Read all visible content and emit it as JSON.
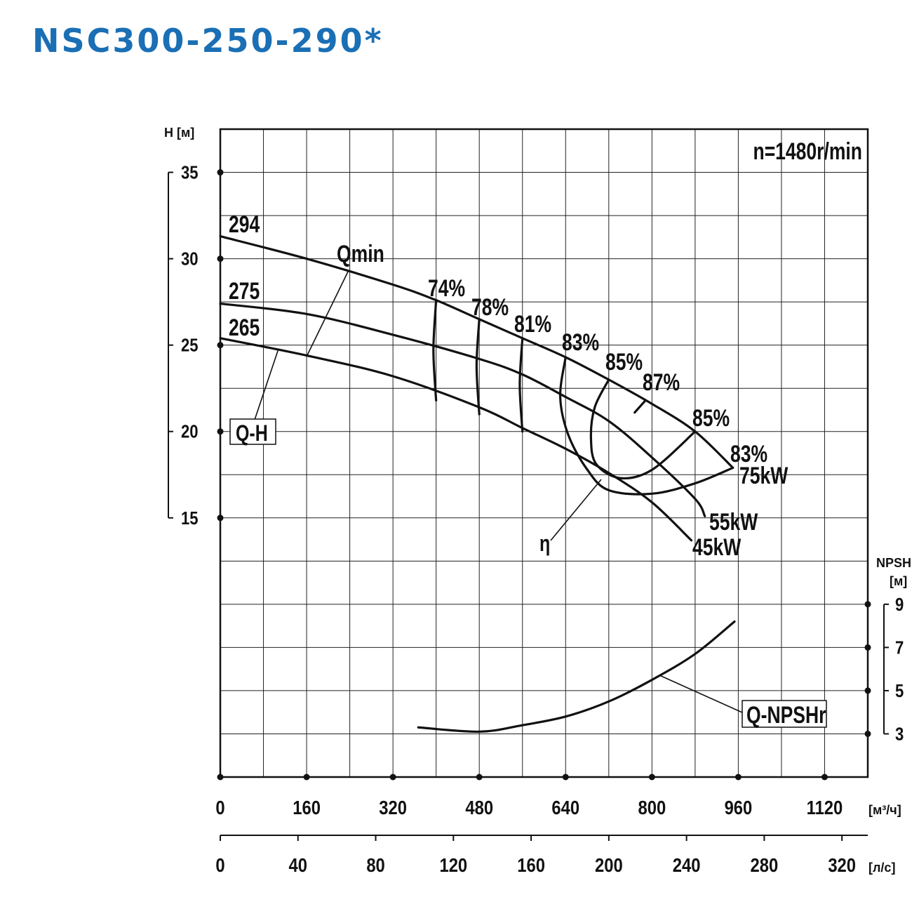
{
  "chart_data": {
    "type": "line",
    "title": "NSC300-250-290*",
    "subtitle": "n=1480r/min",
    "x_label": "[м³/ч]",
    "x2_label": "[л/с]",
    "y_label": "H [м]",
    "y2_label": [
      "NPSH",
      "[м]"
    ],
    "xlim": [
      0,
      1200
    ],
    "xticks": [
      0,
      160,
      320,
      480,
      640,
      800,
      960,
      1120
    ],
    "xgrid": [
      80,
      160,
      240,
      320,
      400,
      480,
      560,
      640,
      720,
      800,
      880,
      960,
      1040,
      1120
    ],
    "x2lim": [
      0,
      333.3
    ],
    "x2ticks": [
      0,
      40,
      80,
      120,
      160,
      200,
      240,
      280,
      320
    ],
    "ylim": [
      0,
      37.5
    ],
    "yticks": [
      15,
      20,
      25,
      30,
      35
    ],
    "ygrid": [
      2.5,
      5,
      7.5,
      10,
      12.5,
      15,
      17.5,
      20,
      22.5,
      25,
      27.5,
      30,
      32.5,
      35
    ],
    "y2lim": [
      1,
      31
    ],
    "y2ticks": [
      3,
      5,
      7,
      9
    ],
    "grid": true,
    "annotations": [
      "Qmin",
      "Q-H",
      "η",
      "Q-NPSHr",
      "75kW",
      "55kW",
      "45kW"
    ],
    "series": [
      {
        "name": "294",
        "color": "#111111",
        "x": [
          0,
          160,
          320,
          400,
          480,
          560,
          640,
          720,
          800,
          880,
          950
        ],
        "values": [
          31.3,
          30,
          28.5,
          27.6,
          26.5,
          25.4,
          24.3,
          23,
          21.6,
          20,
          17.9
        ]
      },
      {
        "name": "275",
        "color": "#111111",
        "x": [
          0,
          160,
          320,
          480,
          560,
          640,
          720,
          800,
          880,
          898
        ],
        "values": [
          27.4,
          26.8,
          25.6,
          24.2,
          23.3,
          22,
          20.6,
          18.5,
          16.1,
          15.1
        ]
      },
      {
        "name": "265",
        "color": "#111111",
        "x": [
          0,
          160,
          320,
          480,
          560,
          640,
          720,
          800,
          873
        ],
        "values": [
          25.4,
          24.4,
          23.2,
          21.4,
          20.2,
          19,
          17.6,
          15.9,
          13.7
        ]
      },
      {
        "name": "Q-NPSHr",
        "color": "#111111",
        "axis": "y2",
        "x": [
          367,
          480,
          560,
          640,
          720,
          800,
          880,
          953
        ],
        "values": [
          3.3,
          3.1,
          3.4,
          3.8,
          4.5,
          5.5,
          6.7,
          8.2
        ]
      },
      {
        "name": "74%",
        "color": "#111111",
        "x": [
          400,
          395,
          400
        ],
        "values": [
          27.6,
          24.7,
          21.8
        ]
      },
      {
        "name": "78%",
        "color": "#111111",
        "x": [
          480,
          475,
          480
        ],
        "values": [
          26.5,
          23.8,
          21
        ]
      },
      {
        "name": "81%",
        "color": "#111111",
        "x": [
          560,
          555,
          560
        ],
        "values": [
          25.4,
          22.7,
          20
        ]
      },
      {
        "name": "83%",
        "color": "#111111",
        "x": [
          640,
          630,
          645,
          680,
          720,
          800,
          880,
          950
        ],
        "values": [
          24.3,
          22,
          19.8,
          17.8,
          16.6,
          16.4,
          17,
          17.9
        ]
      },
      {
        "name": "85%",
        "color": "#111111",
        "x": [
          720,
          694,
          687,
          697,
          742,
          801,
          880
        ],
        "values": [
          23,
          21.4,
          19.6,
          18.1,
          17.3,
          17.8,
          20
        ]
      },
      {
        "name": "87%",
        "color": "#111111",
        "x": [
          768,
          788
        ],
        "values": [
          21.1,
          21.8
        ]
      }
    ]
  }
}
